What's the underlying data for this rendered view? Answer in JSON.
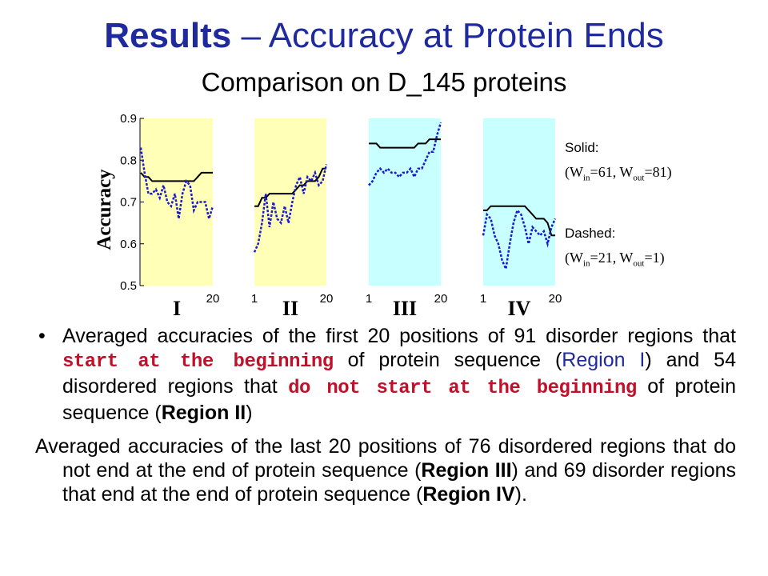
{
  "title": {
    "bold": "Results",
    "rest": " – Accuracy at Protein Ends"
  },
  "subtitle": "Comparison on D_145 proteins",
  "legend": {
    "solid_label": "Solid:",
    "solid_params": {
      "w_in_base": "(W",
      "w_in_sub": "in",
      "w_in_val": "=61, W",
      "w_out_sub": "out",
      "w_out_val": "=81)"
    },
    "dashed_label": "Dashed:",
    "dashed_params": {
      "w_in_base": "(W",
      "w_in_sub": "in",
      "w_in_val": "=21, W",
      "w_out_sub": "out",
      "w_out_val": "=1)"
    }
  },
  "chart_data": {
    "type": "line",
    "ylabel": "Accuracy",
    "ylim": [
      0.5,
      0.9
    ],
    "yticks": [
      "0.5",
      "0.6",
      "0.7",
      "0.8",
      "0.9"
    ],
    "colors": {
      "yellow_bg": "#ffffb8",
      "cyan_bg": "#c8ffff",
      "solid": "#000000",
      "dashed": "#1a1acc"
    },
    "regions": [
      {
        "name": "I",
        "bg": "yellow",
        "tick_labels": [
          "",
          "20"
        ],
        "solid": [
          0.77,
          0.76,
          0.76,
          0.75,
          0.75,
          0.75,
          0.75,
          0.75,
          0.75,
          0.75,
          0.75,
          0.75,
          0.75,
          0.75,
          0.75,
          0.76,
          0.77,
          0.77,
          0.77,
          0.77
        ],
        "dashed": [
          0.83,
          0.77,
          0.72,
          0.72,
          0.73,
          0.71,
          0.74,
          0.7,
          0.69,
          0.72,
          0.66,
          0.72,
          0.75,
          0.74,
          0.68,
          0.7,
          0.7,
          0.7,
          0.66,
          0.69
        ]
      },
      {
        "name": "II",
        "bg": "yellow",
        "tick_labels": [
          "1",
          "20"
        ],
        "solid": [
          0.69,
          0.69,
          0.71,
          0.71,
          0.72,
          0.72,
          0.72,
          0.72,
          0.72,
          0.72,
          0.72,
          0.73,
          0.74,
          0.74,
          0.75,
          0.75,
          0.75,
          0.76,
          0.78,
          0.78
        ],
        "dashed": [
          0.58,
          0.6,
          0.65,
          0.72,
          0.64,
          0.7,
          0.66,
          0.65,
          0.69,
          0.65,
          0.7,
          0.74,
          0.76,
          0.72,
          0.76,
          0.75,
          0.77,
          0.74,
          0.75,
          0.79
        ]
      },
      {
        "name": "III",
        "bg": "cyan",
        "tick_labels": [
          "1",
          "20"
        ],
        "solid": [
          0.84,
          0.84,
          0.84,
          0.83,
          0.83,
          0.83,
          0.83,
          0.83,
          0.83,
          0.83,
          0.83,
          0.83,
          0.83,
          0.84,
          0.84,
          0.84,
          0.85,
          0.85,
          0.85,
          0.85
        ],
        "dashed": [
          0.74,
          0.75,
          0.77,
          0.78,
          0.77,
          0.78,
          0.77,
          0.77,
          0.76,
          0.77,
          0.77,
          0.78,
          0.76,
          0.78,
          0.78,
          0.8,
          0.82,
          0.82,
          0.86,
          0.89
        ]
      },
      {
        "name": "IV",
        "bg": "cyan",
        "tick_labels": [
          "1",
          "20"
        ],
        "solid": [
          0.68,
          0.68,
          0.69,
          0.69,
          0.69,
          0.69,
          0.69,
          0.69,
          0.69,
          0.69,
          0.69,
          0.69,
          0.68,
          0.67,
          0.66,
          0.66,
          0.66,
          0.65,
          0.62,
          0.62
        ],
        "dashed": [
          0.62,
          0.67,
          0.66,
          0.62,
          0.6,
          0.56,
          0.54,
          0.6,
          0.65,
          0.68,
          0.67,
          0.64,
          0.6,
          0.64,
          0.63,
          0.62,
          0.63,
          0.6,
          0.64,
          0.66
        ]
      }
    ]
  },
  "body": {
    "p1": {
      "t1": "Averaged accuracies of the first 20 positions of 91 disorder regions that ",
      "h1": "start at the beginning",
      "t2": " of protein sequence (",
      "r1": "Region I",
      "t3": ") and 54 disordered regions that ",
      "h2": "do not start at the beginning",
      "t4": " of protein sequence (",
      "r2": "Region II",
      "t5": ")"
    },
    "p2": {
      "t1": "Averaged accuracies of the last 20 positions of 76 disordered regions that do not end at the end of protein sequence (",
      "r1": "Region III",
      "t2": ") and 69 disorder regions that end at the end of protein sequence (",
      "r2": "Region IV",
      "t3": ")."
    }
  }
}
